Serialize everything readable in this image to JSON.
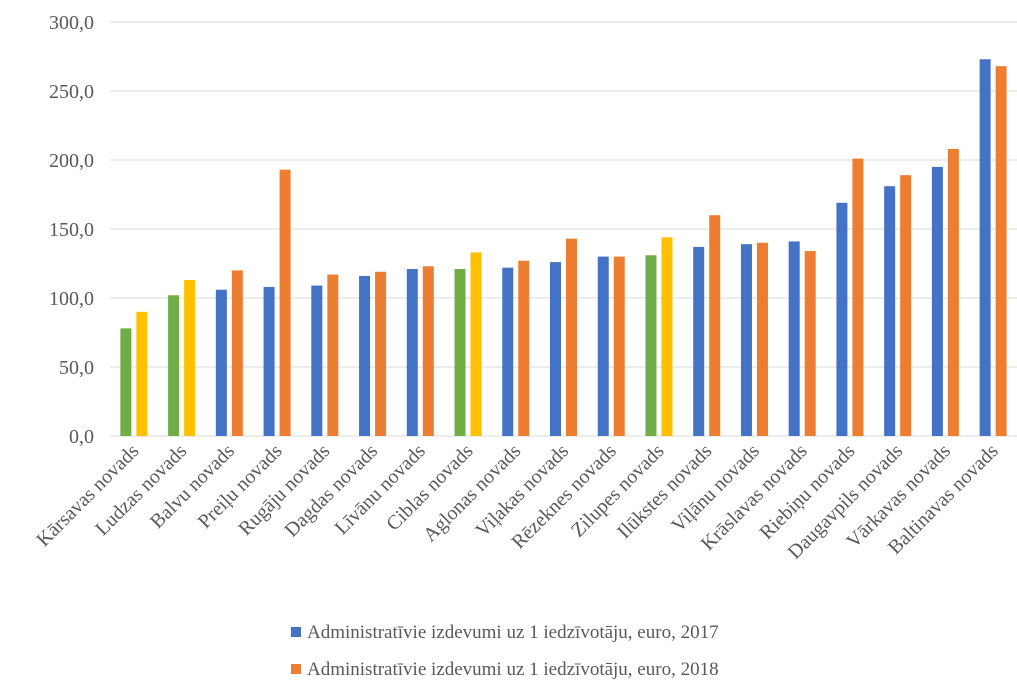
{
  "chart_data": {
    "type": "bar",
    "title": "",
    "xlabel": "",
    "ylabel": "",
    "ylim": [
      0,
      300
    ],
    "yticks": [
      0,
      50,
      100,
      150,
      200,
      250,
      300
    ],
    "ytick_labels": [
      "0,0",
      "50,0",
      "100,0",
      "150,0",
      "200,0",
      "250,0",
      "300,0"
    ],
    "grid": true,
    "legend_position": "bottom",
    "categories": [
      "Kārsavas novads",
      "Ludzas novads",
      "Balvu novads",
      "Preiļu novads",
      "Rugāju novads",
      "Dagdas novads",
      "Līvānu novads",
      "Ciblas novads",
      "Aglonas novads",
      "Viļakas novads",
      "Rēzeknes novads",
      "Zilupes novads",
      "Ilūkstes novads",
      "Viļānu novads",
      "Krāslavas novads",
      "Riebiņu novads",
      "Daugavpils novads",
      "Vārkavas novads",
      "Baltinavas novads"
    ],
    "series": [
      {
        "name": "Administratīvie izdevumi uz 1 iedzīvotāju, euro, 2017",
        "color": "#4472c4",
        "values": [
          78,
          102,
          106,
          108,
          109,
          116,
          121,
          121,
          122,
          126,
          130,
          131,
          137,
          139,
          141,
          169,
          181,
          195,
          273
        ]
      },
      {
        "name": "Administratīvie izdevumi uz 1 iedzīvotāju, euro, 2018",
        "color": "#ed7d31",
        "values": [
          90,
          113,
          120,
          193,
          117,
          119,
          123,
          133,
          127,
          143,
          130,
          144,
          160,
          140,
          134,
          201,
          189,
          208,
          268
        ]
      }
    ],
    "highlighted_categories": [
      "Kārsavas novads",
      "Ludzas novads",
      "Ciblas novads",
      "Zilupes novads"
    ],
    "highlight_colors": {
      "2017": "#70ad47",
      "2018": "#ffc000"
    },
    "grid_color": "#d9d9d9",
    "axis_color": "#d9d9d9"
  }
}
